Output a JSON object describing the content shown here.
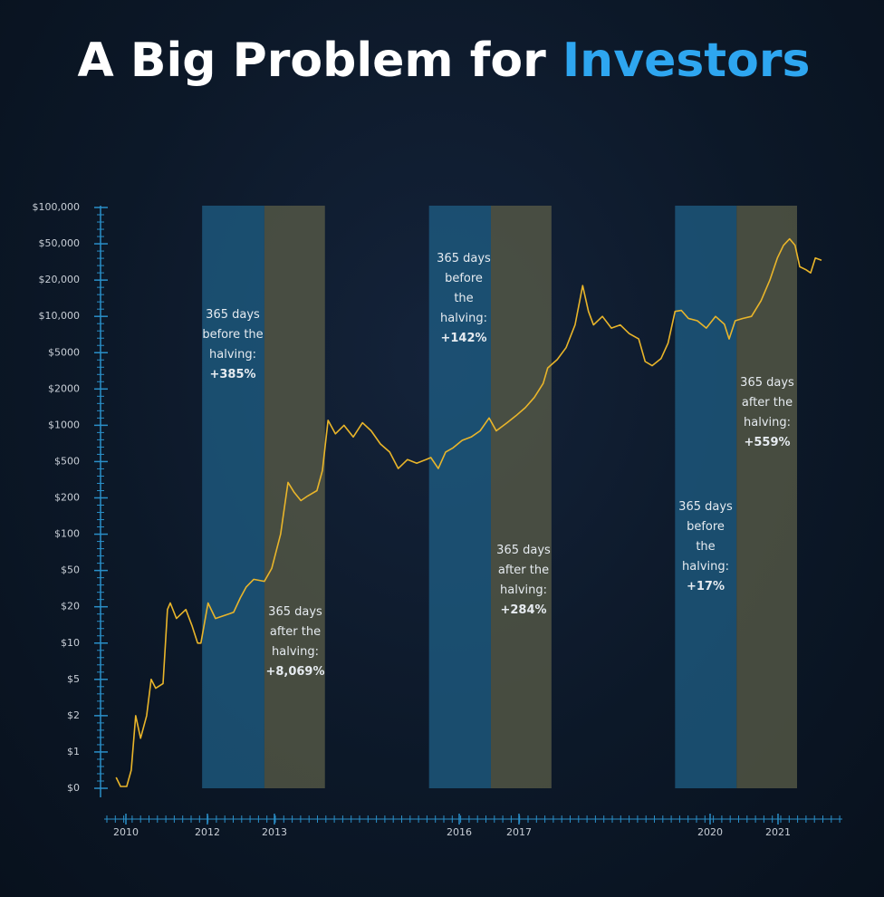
{
  "chart_data": {
    "type": "line",
    "title_parts": [
      "A Big Problem for",
      "Investors"
    ],
    "title_colors": [
      "#ffffff",
      "#2ea6f0"
    ],
    "color": "#e9b52a",
    "log_scale": true,
    "xlim": [
      2009.7,
      2021.7
    ],
    "xticks": [
      2010,
      2012,
      2013,
      2016,
      2017,
      2020,
      2021
    ],
    "ylim": [
      0,
      100000
    ],
    "yticks": [
      {
        "value": 0,
        "label": "$0"
      },
      {
        "value": 1,
        "label": "$1"
      },
      {
        "value": 2,
        "label": "$2"
      },
      {
        "value": 5,
        "label": "$5"
      },
      {
        "value": 10,
        "label": "$10"
      },
      {
        "value": 20,
        "label": "$20"
      },
      {
        "value": 50,
        "label": "$50"
      },
      {
        "value": 100,
        "label": "$100"
      },
      {
        "value": 200,
        "label": "$200"
      },
      {
        "value": 500,
        "label": "$500"
      },
      {
        "value": 1000,
        "label": "$1000"
      },
      {
        "value": 2000,
        "label": "$2000"
      },
      {
        "value": 5000,
        "label": "$5000"
      },
      {
        "value": 10000,
        "label": "$10,000"
      },
      {
        "value": 20000,
        "label": "$20,000"
      },
      {
        "value": 50000,
        "label": "$50,000"
      },
      {
        "value": 100000,
        "label": "$100,000"
      }
    ],
    "x": [
      2009.76,
      2009.87,
      2010.02,
      2010.13,
      2010.24,
      2010.36,
      2010.51,
      2010.62,
      2010.73,
      2010.91,
      2011.02,
      2011.09,
      2011.24,
      2011.47,
      2011.62,
      2011.76,
      2011.84,
      2012.01,
      2012.12,
      2012.26,
      2012.39,
      2012.49,
      2012.58,
      2012.69,
      2012.85,
      2012.96,
      2013.1,
      2013.22,
      2013.32,
      2013.43,
      2013.54,
      2013.69,
      2013.78,
      2013.87,
      2013.99,
      2014.13,
      2014.28,
      2014.43,
      2014.57,
      2014.72,
      2014.87,
      2015.01,
      2015.16,
      2015.31,
      2015.46,
      2015.54,
      2015.66,
      2015.78,
      2015.9,
      2016.05,
      2016.2,
      2016.35,
      2016.5,
      2016.62,
      2016.8,
      2016.95,
      2017.1,
      2017.24,
      2017.38,
      2017.45,
      2017.6,
      2017.74,
      2017.88,
      2018.0,
      2018.09,
      2018.17,
      2018.31,
      2018.45,
      2018.59,
      2018.73,
      2018.88,
      2018.98,
      2019.09,
      2019.23,
      2019.34,
      2019.45,
      2019.55,
      2019.66,
      2019.8,
      2019.94,
      2020.08,
      2020.21,
      2020.28,
      2020.37,
      2020.48,
      2020.61,
      2020.75,
      2020.88,
      2020.99,
      2021.08,
      2021.17,
      2021.25,
      2021.32,
      2021.41,
      2021.48,
      2021.55,
      2021.64
    ],
    "values": [
      0.3,
      0.05,
      0.05,
      0.5,
      2,
      1.3,
      2,
      5,
      4,
      4.5,
      19,
      22,
      16,
      19,
      14,
      10,
      10,
      22,
      16,
      17,
      18,
      25,
      33,
      40,
      38,
      52,
      100,
      296,
      230,
      190,
      210,
      240,
      400,
      1100,
      850,
      1000,
      800,
      1050,
      900,
      700,
      600,
      420,
      520,
      480,
      520,
      540,
      420,
      600,
      650,
      750,
      800,
      900,
      1150,
      900,
      1050,
      1200,
      1400,
      1700,
      2300,
      3400,
      4200,
      5500,
      8500,
      18000,
      11000,
      8500,
      10000,
      8000,
      8500,
      7200,
      6500,
      4000,
      3600,
      4300,
      6000,
      11000,
      11200,
      9600,
      9200,
      8000,
      10000,
      8600,
      6500,
      9200,
      9600,
      10000,
      13500,
      20000,
      35000,
      48000,
      55000,
      48000,
      28000,
      26000,
      24000,
      35000,
      33000
    ],
    "bands": [
      {
        "start": 2011.87,
        "end": 2012.85,
        "color": "#1f5f85",
        "label": "365 days before the halving:",
        "change": "+385%"
      },
      {
        "start": 2012.85,
        "end": 2013.82,
        "color": "#5b5d48",
        "label": "365 days after the halving:",
        "change": "+8,069%"
      },
      {
        "start": 2015.51,
        "end": 2016.53,
        "color": "#1f5f85",
        "label": "365 days before the halving:",
        "change": "+142%"
      },
      {
        "start": 2016.53,
        "end": 2017.51,
        "color": "#5b5d48",
        "label": "365 days after the halving:",
        "change": "+284%"
      },
      {
        "start": 2019.45,
        "end": 2020.39,
        "color": "#1f5f85",
        "label": "365 days before the halving:",
        "change": "+17%"
      },
      {
        "start": 2020.39,
        "end": 2021.28,
        "color": "#5b5d48",
        "label": "365 days after the halving:",
        "change": "+559%"
      }
    ]
  }
}
